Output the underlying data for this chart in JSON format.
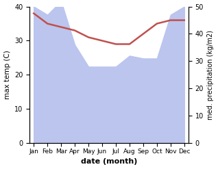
{
  "months": [
    "Jan",
    "Feb",
    "Mar",
    "Apr",
    "May",
    "Jun",
    "Jul",
    "Aug",
    "Sep",
    "Oct",
    "Nov",
    "Dec"
  ],
  "month_indices": [
    0,
    1,
    2,
    3,
    4,
    5,
    6,
    7,
    8,
    9,
    10,
    11
  ],
  "max_temp": [
    38.0,
    35.0,
    34.0,
    33.0,
    31.0,
    30.0,
    29.0,
    29.0,
    32.0,
    35.0,
    36.0,
    36.0
  ],
  "precipitation": [
    50.0,
    47.0,
    52.0,
    36.0,
    28.0,
    28.0,
    28.0,
    32.0,
    31.0,
    31.0,
    47.0,
    50.0
  ],
  "temp_color": "#c0504d",
  "precip_fill_color": "#bbc5ee",
  "temp_ylim": [
    0,
    40
  ],
  "precip_ylim": [
    0,
    50
  ],
  "temp_yticks": [
    0,
    10,
    20,
    30,
    40
  ],
  "precip_yticks": [
    0,
    10,
    20,
    30,
    40,
    50
  ],
  "xlabel": "date (month)",
  "ylabel_left": "max temp (C)",
  "ylabel_right": "med. precipitation (kg/m2)",
  "figsize": [
    3.18,
    2.47
  ],
  "dpi": 100
}
